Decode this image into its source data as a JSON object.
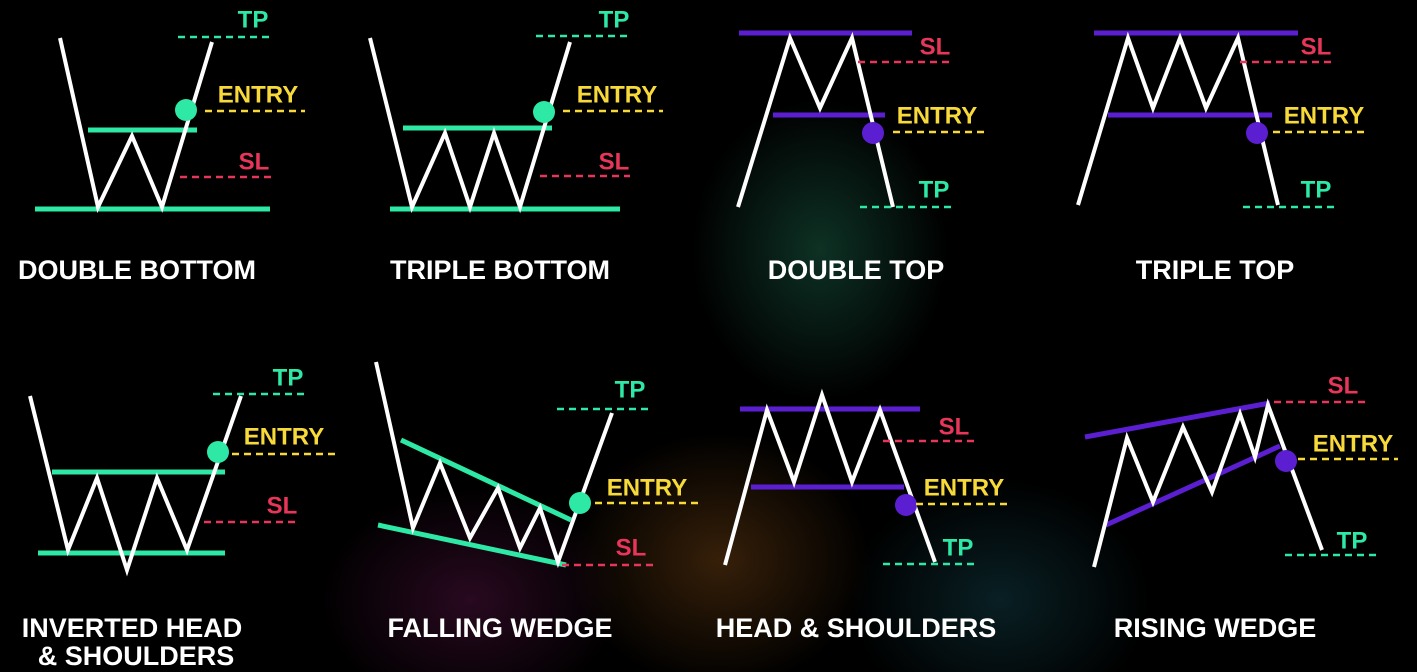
{
  "patterns": [
    {
      "title_lines": [
        "DOUBLE BOTTOM"
      ],
      "tp": "TP",
      "entry": "ENTRY",
      "sl": "SL"
    },
    {
      "title_lines": [
        "TRIPLE BOTTOM"
      ],
      "tp": "TP",
      "entry": "ENTRY",
      "sl": "SL"
    },
    {
      "title_lines": [
        "DOUBLE TOP"
      ],
      "tp": "TP",
      "entry": "ENTRY",
      "sl": "SL"
    },
    {
      "title_lines": [
        "TRIPLE TOP"
      ],
      "tp": "TP",
      "entry": "ENTRY",
      "sl": "SL"
    },
    {
      "title_lines": [
        "INVERTED HEAD",
        "& SHOULDERS"
      ],
      "tp": "TP",
      "entry": "ENTRY",
      "sl": "SL"
    },
    {
      "title_lines": [
        "FALLING WEDGE"
      ],
      "tp": "TP",
      "entry": "ENTRY",
      "sl": "SL"
    },
    {
      "title_lines": [
        "HEAD & SHOULDERS"
      ],
      "tp": "TP",
      "entry": "ENTRY",
      "sl": "SL"
    },
    {
      "title_lines": [
        "RISING WEDGE"
      ],
      "tp": "TP",
      "entry": "ENTRY",
      "sl": "SL"
    }
  ]
}
